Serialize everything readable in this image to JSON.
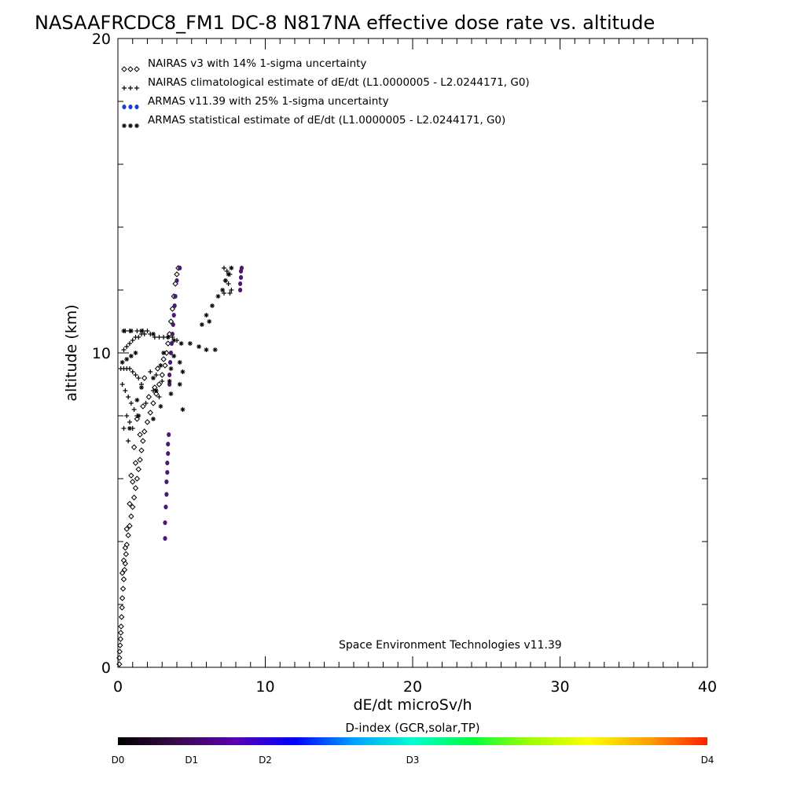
{
  "chart_data": {
    "type": "scatter",
    "title": "NASAAFRCDC8_FM1 DC-8   N817NA effective dose rate vs. altitude",
    "xlabel": "dE/dt microSv/h",
    "ylabel": "altitude (km)",
    "xlim": [
      0,
      40
    ],
    "ylim": [
      0,
      20
    ],
    "x_ticks": [
      "0",
      "10",
      "20",
      "30",
      "40"
    ],
    "y_ticks": [
      "0",
      "10",
      "20"
    ],
    "grid": false,
    "legend_position": "top-left",
    "credit": "Space Environment Technologies v11.39",
    "legend": [
      {
        "label": "NAIRAS v3 with 14% 1-sigma uncertainty",
        "marker": "diamond",
        "color": "#000000"
      },
      {
        "label": "NAIRAS climatological estimate of dE/dt (L1.0000005 - L2.0244171, G0)",
        "marker": "plus",
        "color": "#000000"
      },
      {
        "label": "ARMAS v11.39 with 25% 1-sigma uncertainty",
        "marker": "dot",
        "color": "#1a3fcf"
      },
      {
        "label": "ARMAS statistical estimate of dE/dt (L1.0000005 - L2.0244171, G0)",
        "marker": "asterisk",
        "color": "#000000"
      }
    ],
    "series": [
      {
        "name": "NAIRAS v3 with 14% 1-sigma uncertainty",
        "marker": "diamond",
        "points": [
          [
            0.1,
            0.1
          ],
          [
            0.1,
            0.3
          ],
          [
            0.12,
            0.5
          ],
          [
            0.15,
            0.7
          ],
          [
            0.18,
            0.9
          ],
          [
            0.2,
            1.1
          ],
          [
            0.22,
            1.3
          ],
          [
            0.25,
            1.6
          ],
          [
            0.28,
            1.9
          ],
          [
            0.3,
            2.2
          ],
          [
            0.35,
            2.5
          ],
          [
            0.4,
            2.8
          ],
          [
            0.45,
            3.1
          ],
          [
            0.5,
            3.3
          ],
          [
            0.55,
            3.6
          ],
          [
            0.6,
            3.9
          ],
          [
            0.7,
            4.2
          ],
          [
            0.8,
            4.5
          ],
          [
            0.9,
            4.8
          ],
          [
            1.0,
            5.1
          ],
          [
            1.1,
            5.4
          ],
          [
            1.2,
            5.7
          ],
          [
            1.3,
            6.0
          ],
          [
            1.4,
            6.3
          ],
          [
            1.5,
            6.6
          ],
          [
            1.6,
            6.9
          ],
          [
            1.7,
            7.2
          ],
          [
            1.8,
            7.5
          ],
          [
            2.0,
            7.8
          ],
          [
            2.2,
            8.1
          ],
          [
            2.4,
            8.4
          ],
          [
            2.6,
            8.7
          ],
          [
            2.8,
            9.0
          ],
          [
            3.0,
            9.3
          ],
          [
            3.2,
            9.6
          ],
          [
            3.3,
            10.0
          ],
          [
            3.4,
            10.3
          ],
          [
            3.5,
            10.6
          ],
          [
            3.6,
            11.0
          ],
          [
            3.7,
            11.4
          ],
          [
            3.8,
            11.8
          ],
          [
            3.9,
            12.2
          ],
          [
            4.0,
            12.5
          ],
          [
            4.1,
            12.7
          ],
          [
            0.3,
            3.0
          ],
          [
            0.4,
            3.4
          ],
          [
            0.5,
            3.8
          ],
          [
            0.6,
            4.4
          ],
          [
            0.8,
            5.2
          ],
          [
            1.0,
            5.9
          ],
          [
            1.2,
            6.5
          ],
          [
            0.9,
            6.1
          ],
          [
            1.1,
            7.0
          ],
          [
            1.5,
            7.4
          ],
          [
            1.3,
            7.9
          ],
          [
            1.7,
            8.3
          ],
          [
            2.1,
            8.6
          ],
          [
            2.5,
            8.9
          ],
          [
            1.8,
            9.2
          ],
          [
            2.7,
            9.5
          ],
          [
            3.1,
            9.8
          ]
        ]
      },
      {
        "name": "NAIRAS climatological estimate of dE/dt (L1.0000005 - L2.0244171, G0)",
        "marker": "plus",
        "points": [
          [
            0.2,
            9.5
          ],
          [
            0.4,
            9.5
          ],
          [
            0.6,
            9.5
          ],
          [
            0.8,
            9.5
          ],
          [
            1.0,
            9.4
          ],
          [
            1.2,
            9.3
          ],
          [
            1.4,
            9.2
          ],
          [
            1.6,
            9.0
          ],
          [
            0.3,
            9.0
          ],
          [
            0.5,
            8.8
          ],
          [
            0.7,
            8.6
          ],
          [
            0.9,
            8.4
          ],
          [
            1.1,
            8.2
          ],
          [
            1.3,
            8.0
          ],
          [
            0.6,
            8.0
          ],
          [
            0.8,
            7.8
          ],
          [
            1.0,
            7.6
          ],
          [
            0.4,
            7.6
          ],
          [
            0.7,
            7.2
          ],
          [
            0.4,
            10.1
          ],
          [
            0.6,
            10.2
          ],
          [
            0.8,
            10.3
          ],
          [
            1.0,
            10.4
          ],
          [
            1.2,
            10.5
          ],
          [
            1.4,
            10.5
          ],
          [
            1.6,
            10.6
          ],
          [
            1.8,
            10.6
          ],
          [
            2.0,
            10.7
          ],
          [
            0.5,
            10.7
          ],
          [
            0.8,
            10.7
          ],
          [
            1.3,
            10.7
          ],
          [
            1.7,
            10.7
          ],
          [
            2.2,
            10.6
          ],
          [
            2.5,
            10.5
          ],
          [
            2.8,
            10.5
          ],
          [
            3.1,
            10.5
          ],
          [
            3.4,
            10.5
          ],
          [
            3.7,
            10.5
          ],
          [
            4.0,
            10.4
          ],
          [
            2.2,
            9.4
          ],
          [
            2.6,
            9.3
          ],
          [
            3.0,
            9.1
          ],
          [
            2.4,
            8.8
          ],
          [
            2.8,
            8.6
          ],
          [
            1.9,
            8.4
          ],
          [
            7.2,
            12.7
          ],
          [
            7.4,
            12.6
          ],
          [
            7.6,
            12.5
          ],
          [
            7.3,
            12.3
          ],
          [
            7.5,
            12.2
          ],
          [
            7.7,
            12.0
          ],
          [
            7.2,
            11.9
          ],
          [
            7.6,
            11.9
          ]
        ]
      },
      {
        "name": "ARMAS v11.39 with 25% 1-sigma uncertainty",
        "marker": "dot",
        "points": [
          [
            3.2,
            4.1
          ],
          [
            3.2,
            4.6
          ],
          [
            3.25,
            5.1
          ],
          [
            3.3,
            5.5
          ],
          [
            3.3,
            5.9
          ],
          [
            3.35,
            6.2
          ],
          [
            3.35,
            6.5
          ],
          [
            3.4,
            6.8
          ],
          [
            3.4,
            7.1
          ],
          [
            3.45,
            7.4
          ],
          [
            3.5,
            9.0
          ],
          [
            3.5,
            9.3
          ],
          [
            3.55,
            9.7
          ],
          [
            3.6,
            10.0
          ],
          [
            3.65,
            10.3
          ],
          [
            3.7,
            10.6
          ],
          [
            3.75,
            10.9
          ],
          [
            3.8,
            11.2
          ],
          [
            3.85,
            11.5
          ],
          [
            3.9,
            11.8
          ],
          [
            4.0,
            12.3
          ],
          [
            4.2,
            12.7
          ],
          [
            8.3,
            12.0
          ],
          [
            8.3,
            12.2
          ],
          [
            8.35,
            12.4
          ],
          [
            8.35,
            12.6
          ],
          [
            8.4,
            12.7
          ]
        ]
      },
      {
        "name": "ARMAS statistical estimate of dE/dt (L1.0000005 - L2.0244171, G0)",
        "marker": "asterisk",
        "points": [
          [
            0.3,
            9.7
          ],
          [
            0.6,
            9.8
          ],
          [
            0.9,
            9.9
          ],
          [
            1.2,
            10.0
          ],
          [
            0.4,
            10.7
          ],
          [
            0.9,
            10.7
          ],
          [
            1.6,
            10.7
          ],
          [
            2.4,
            10.6
          ],
          [
            3.4,
            10.5
          ],
          [
            3.8,
            10.4
          ],
          [
            4.3,
            10.3
          ],
          [
            4.9,
            10.3
          ],
          [
            5.5,
            10.2
          ],
          [
            6.0,
            10.1
          ],
          [
            6.6,
            10.1
          ],
          [
            3.1,
            10.0
          ],
          [
            3.8,
            9.9
          ],
          [
            4.2,
            9.7
          ],
          [
            2.9,
            9.6
          ],
          [
            3.6,
            9.5
          ],
          [
            4.4,
            9.4
          ],
          [
            2.4,
            9.2
          ],
          [
            3.5,
            9.1
          ],
          [
            4.2,
            9.0
          ],
          [
            1.6,
            8.9
          ],
          [
            2.6,
            8.8
          ],
          [
            3.6,
            8.7
          ],
          [
            1.3,
            8.5
          ],
          [
            2.9,
            8.3
          ],
          [
            4.4,
            8.2
          ],
          [
            1.4,
            8.0
          ],
          [
            2.4,
            7.9
          ],
          [
            0.8,
            7.6
          ],
          [
            5.7,
            10.9
          ],
          [
            6.0,
            11.2
          ],
          [
            6.4,
            11.5
          ],
          [
            6.8,
            11.8
          ],
          [
            7.1,
            12.0
          ],
          [
            7.3,
            12.3
          ],
          [
            7.5,
            12.5
          ],
          [
            7.7,
            12.7
          ],
          [
            6.2,
            11.0
          ]
        ]
      }
    ],
    "colorbar": {
      "title": "D-index (GCR,solar,TP)",
      "labels": [
        {
          "text": "D0",
          "value": 0
        },
        {
          "text": "D1",
          "value": 0.125
        },
        {
          "text": "D2",
          "value": 0.25
        },
        {
          "text": "D3",
          "value": 0.5
        },
        {
          "text": "D4",
          "value": 1
        }
      ],
      "stops": [
        "#000000",
        "#3a0a4a",
        "#5a00b4",
        "#0000ff",
        "#00a0ff",
        "#00ffd0",
        "#00ff40",
        "#a0ff00",
        "#ffff00",
        "#ffa000",
        "#ff2000"
      ]
    }
  }
}
